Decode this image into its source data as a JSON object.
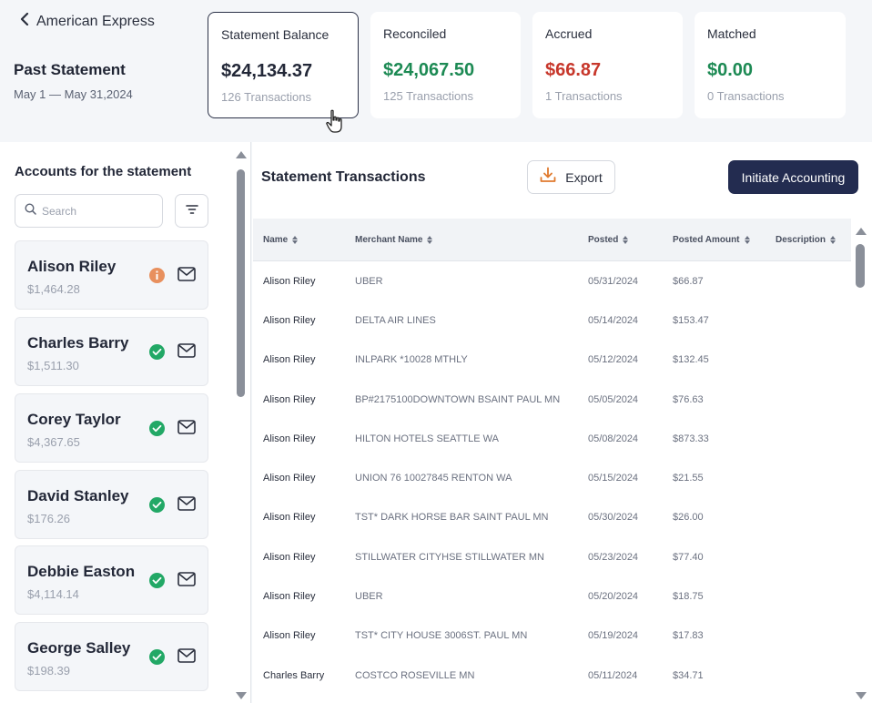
{
  "header": {
    "back_label": "American Express",
    "statement_title": "Past Statement",
    "statement_range": "May 1 — May 31,2024"
  },
  "cards": [
    {
      "label": "Statement Balance",
      "value": "$24,134.37",
      "sub": "126 Transactions",
      "color": "#232838"
    },
    {
      "label": "Reconciled",
      "value": "$24,067.50",
      "sub": "125 Transactions",
      "color": "#1d8a54"
    },
    {
      "label": "Accrued",
      "value": "$66.87",
      "sub": "1 Transactions",
      "color": "#c7372b"
    },
    {
      "label": "Matched",
      "value": "$0.00",
      "sub": "0 Transactions",
      "color": "#1d8a54"
    }
  ],
  "left": {
    "title": "Accounts for the statement",
    "search_placeholder": "Search",
    "accounts": [
      {
        "name": "Alison Riley",
        "amount": "$1,464.28",
        "status": "info",
        "status_icon": "info-icon",
        "status_color": "#e8905e"
      },
      {
        "name": "Charles Barry",
        "amount": "$1,511.30",
        "status": "ok",
        "status_icon": "check-circle-icon",
        "status_color": "#22a866"
      },
      {
        "name": "Corey Taylor",
        "amount": "$4,367.65",
        "status": "ok",
        "status_icon": "check-circle-icon",
        "status_color": "#22a866"
      },
      {
        "name": "David Stanley",
        "amount": "$176.26",
        "status": "ok",
        "status_icon": "check-circle-icon",
        "status_color": "#22a866"
      },
      {
        "name": "Debbie Easton",
        "amount": "$4,114.14",
        "status": "ok",
        "status_icon": "check-circle-icon",
        "status_color": "#22a866"
      },
      {
        "name": "George Salley",
        "amount": "$198.39",
        "status": "ok",
        "status_icon": "check-circle-icon",
        "status_color": "#22a866"
      }
    ]
  },
  "right": {
    "title": "Statement Transactions",
    "export_label": "Export",
    "initiate_label": "Initiate Accounting",
    "columns": [
      "Name",
      "Merchant Name",
      "Posted",
      "Posted Amount",
      "Description"
    ],
    "rows": [
      {
        "name": "Alison Riley",
        "merchant": "UBER",
        "posted": "05/31/2024",
        "amount": "$66.87",
        "description": ""
      },
      {
        "name": "Alison Riley",
        "merchant": "DELTA AIR LINES",
        "posted": "05/14/2024",
        "amount": "$153.47",
        "description": ""
      },
      {
        "name": "Alison Riley",
        "merchant": "INLPARK *10028 MTHLY",
        "posted": "05/12/2024",
        "amount": "$132.45",
        "description": ""
      },
      {
        "name": "Alison Riley",
        "merchant": "BP#2175100DOWNTOWN BSAINT PAUL MN",
        "posted": "05/05/2024",
        "amount": "$76.63",
        "description": ""
      },
      {
        "name": "Alison Riley",
        "merchant": "HILTON HOTELS SEATTLE WA",
        "posted": "05/08/2024",
        "amount": "$873.33",
        "description": ""
      },
      {
        "name": "Alison Riley",
        "merchant": "UNION 76 10027845 RENTON WA",
        "posted": "05/15/2024",
        "amount": "$21.55",
        "description": ""
      },
      {
        "name": "Alison Riley",
        "merchant": "TST* DARK HORSE BAR SAINT PAUL MN",
        "posted": "05/30/2024",
        "amount": "$26.00",
        "description": ""
      },
      {
        "name": "Alison Riley",
        "merchant": "STILLWATER CITYHSE STILLWATER MN",
        "posted": "05/23/2024",
        "amount": "$77.40",
        "description": ""
      },
      {
        "name": "Alison Riley",
        "merchant": "UBER",
        "posted": "05/20/2024",
        "amount": "$18.75",
        "description": ""
      },
      {
        "name": "Alison Riley",
        "merchant": "TST* CITY HOUSE 3006ST. PAUL MN",
        "posted": "05/19/2024",
        "amount": "$17.83",
        "description": ""
      },
      {
        "name": "Charles Barry",
        "merchant": "COSTCO ROSEVILLE MN",
        "posted": "05/11/2024",
        "amount": "$34.71",
        "description": ""
      }
    ]
  },
  "colors": {
    "primary_button": "#232c50",
    "positive": "#1d8a54",
    "negative": "#c7372b",
    "export_accent": "#e07a2e"
  }
}
